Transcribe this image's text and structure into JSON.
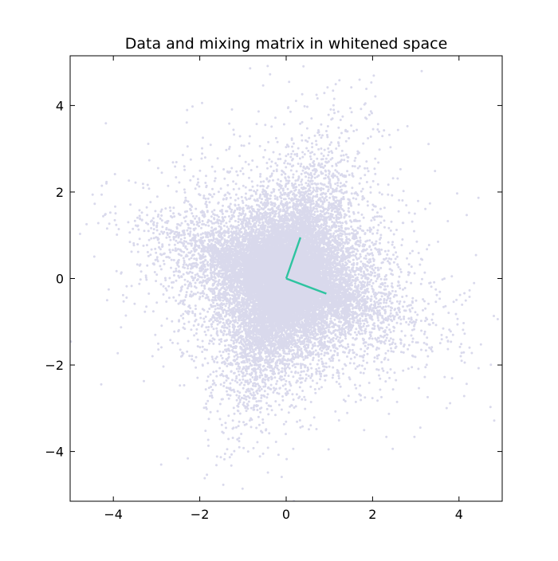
{
  "chart_data": {
    "type": "scatter",
    "title": "Data and mixing matrix in whitened space",
    "xlabel": "",
    "ylabel": "",
    "xlim": [
      -5,
      5
    ],
    "ylim": [
      -5.15,
      5.15
    ],
    "xticks": [
      -4,
      -2,
      0,
      2,
      4
    ],
    "yticks": [
      -4,
      -2,
      0,
      2,
      4
    ],
    "xtick_labels": [
      "−4",
      "−2",
      "0",
      "2",
      "4"
    ],
    "ytick_labels": [
      "−4",
      "−2",
      "0",
      "2",
      "4"
    ],
    "grid": false,
    "legend": "none",
    "series": [
      {
        "kind": "points",
        "color": "#00007f",
        "alpha": 0.15,
        "approx_count": 20000,
        "distribution": "heavy-tailed independent sources mixed by rotation, centered at (0, 0)"
      },
      {
        "kind": "vectors",
        "color": "#2ec4a0",
        "origin": [
          0,
          0
        ],
        "vectors": [
          [
            0.33,
            0.95
          ],
          [
            0.93,
            -0.35
          ]
        ]
      }
    ]
  }
}
